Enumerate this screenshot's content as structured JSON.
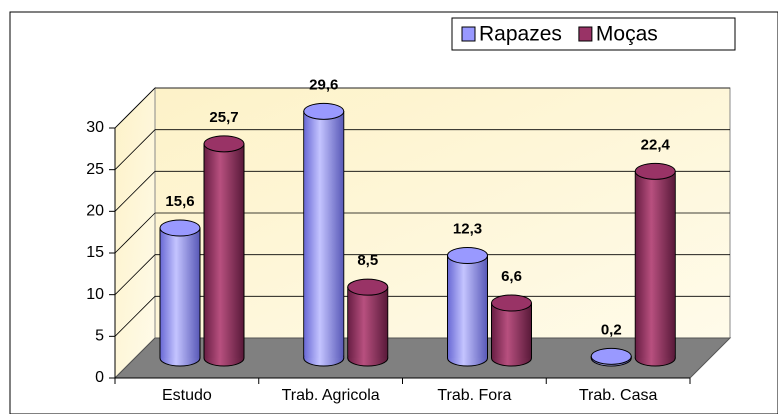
{
  "chart_data": {
    "type": "bar3d",
    "categories": [
      "Estudo",
      "Trab. Agricola",
      "Trab. Fora",
      "Trab. Casa"
    ],
    "series": [
      {
        "name": "Rapazes",
        "color": "#9999ff",
        "values": [
          15.6,
          29.6,
          12.3,
          0.2
        ],
        "value_labels": [
          "15,6",
          "29,6",
          "12,3",
          "0,2"
        ]
      },
      {
        "name": "Moças",
        "color": "#993366",
        "values": [
          25.7,
          8.5,
          6.6,
          22.4
        ],
        "value_labels": [
          "25,7",
          "8,5",
          "6,6",
          "22,4"
        ]
      }
    ],
    "ylim": [
      0,
      30
    ],
    "yticks": [
      0,
      5,
      10,
      15,
      20,
      25,
      30
    ],
    "grid": true,
    "legend": "top-right"
  }
}
